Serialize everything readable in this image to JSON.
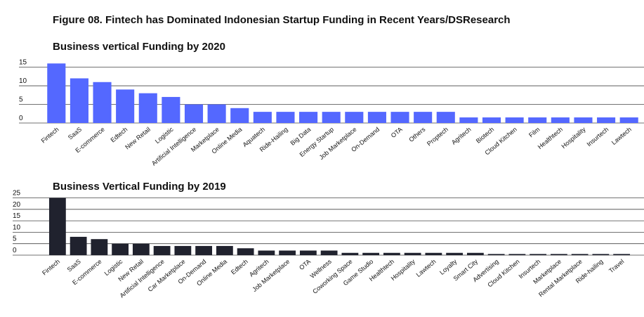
{
  "figure_title": "Figure 08. Fintech has Dominated Indonesian Startup Funding in Recent Years/DSResearch",
  "colors": {
    "series_2020": "#5468ff",
    "series_2019": "#20222e",
    "grid": "#444444"
  },
  "chart_data": [
    {
      "type": "bar",
      "title": "Business vertical Funding by 2020",
      "xlabel": "",
      "ylabel": "",
      "ylim": [
        0,
        17
      ],
      "yticks": [
        0,
        5,
        10,
        15
      ],
      "grid": true,
      "categories": [
        "Fintech",
        "SaaS",
        "E-commerce",
        "Edtech",
        "New Retail",
        "Logistic",
        "Artificial Intelligence",
        "Marketplace",
        "Online Media",
        "Aquatech",
        "Ride-Hailing",
        "Big Data",
        "Energy Startup",
        "Job Marketplace",
        "On-Demand",
        "OTA",
        "Others",
        "Proptech",
        "Agritech",
        "Biotech",
        "Cloud Kitchen",
        "Film",
        "Healthtech",
        "Hospitality",
        "Insurtech",
        "Lawtech"
      ],
      "values": [
        16,
        12,
        11,
        9,
        8,
        7,
        5,
        5,
        4,
        3,
        3,
        3,
        3,
        3,
        3,
        3,
        3,
        3,
        1.5,
        1.5,
        1.5,
        1.5,
        1.5,
        1.5,
        1.5,
        1.5
      ]
    },
    {
      "type": "bar",
      "title": "Business Vertical Funding by 2019",
      "xlabel": "",
      "ylabel": "",
      "ylim": [
        0,
        27
      ],
      "yticks": [
        0,
        5,
        10,
        15,
        20,
        25
      ],
      "grid": true,
      "categories": [
        "Fintech",
        "SaaS",
        "E-commerce",
        "Logistic",
        "New Retail",
        "Artificial Intelligence",
        "Car Marketplace",
        "On-Demand",
        "Online Media",
        "Edtech",
        "Agritech",
        "Job Marketplace",
        "OTA",
        "Wellness",
        "Coworking Space",
        "Game Studio",
        "Healthtech",
        "Hospitality",
        "Lawtech",
        "Loyalty",
        "Smart City",
        "Advertising",
        "Cloud Kitchen",
        "Insurtech",
        "Marketplace",
        "Rental Marketplace",
        "Ride-hailing",
        "Travel"
      ],
      "values": [
        25,
        8,
        7,
        5,
        5,
        4,
        4,
        4,
        4,
        3,
        2,
        2,
        2,
        2,
        1,
        1,
        1,
        1,
        1,
        1,
        1,
        0.5,
        0.5,
        0.5,
        0.5,
        0.5,
        0.5,
        0.5
      ]
    }
  ]
}
